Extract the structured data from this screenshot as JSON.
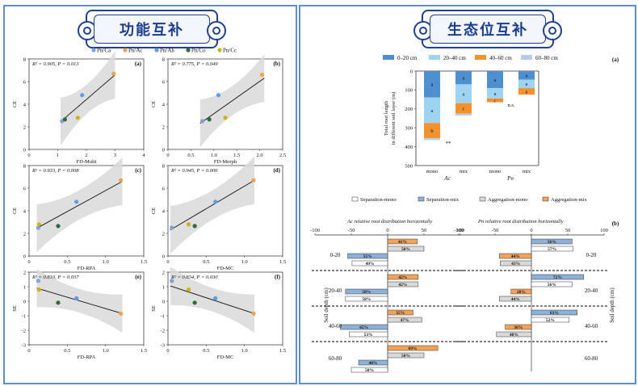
{
  "left_title": "功能互补",
  "right_title": "生态位互补",
  "left_legend": [
    {
      "label": "Pn/Ca",
      "color": "#7fa3d8"
    },
    {
      "label": "Pn/Ac",
      "color": "#f4a24c"
    },
    {
      "label": "Pn/Ah",
      "color": "#5b9cf0"
    },
    {
      "label": "Pn/Co",
      "color": "#2e6b3a"
    },
    {
      "label": "Pn/Cc",
      "color": "#c8b416"
    }
  ],
  "right_top_legend": [
    {
      "label": "0–20 cm",
      "color": "#4e8fcf"
    },
    {
      "label": "20–40 cm",
      "color": "#9ed4f2"
    },
    {
      "label": "40–60 cm",
      "color": "#f2922f"
    },
    {
      "label": "60–80 cm",
      "color": "#b9cbe8"
    }
  ],
  "right_bottom_legend": [
    {
      "label": "Separation-mono",
      "color": "#ffffff"
    },
    {
      "label": "Separation-mix",
      "color": "#8fb0d8"
    },
    {
      "label": "Aggregation-mono",
      "color": "#d9d9d9"
    },
    {
      "label": "Aggregation-mix",
      "color": "#f2a35a"
    }
  ],
  "chart_data": [
    {
      "type": "scatter",
      "panel": "(a)",
      "stat": "R² = 0.905, P = 0.013",
      "xlabel": "FD-Multi",
      "ylabel": "CE",
      "xlim": [
        0,
        4
      ],
      "ylim": [
        0,
        8
      ],
      "xticks": [
        "0",
        "1",
        "2",
        "3",
        "4"
      ],
      "yticks": [
        "0",
        "2",
        "4",
        "6",
        "8"
      ],
      "points": [
        {
          "x": 1.15,
          "y": 2.5
        },
        {
          "x": 2.95,
          "y": 6.7
        },
        {
          "x": 1.85,
          "y": 4.8
        },
        {
          "x": 1.25,
          "y": 2.65
        },
        {
          "x": 1.7,
          "y": 2.8
        }
      ],
      "fit": [
        [
          1.1,
          2.45
        ],
        [
          3.0,
          6.6
        ]
      ]
    },
    {
      "type": "scatter",
      "panel": "(b)",
      "stat": "R² = 0.775, P = 0.049",
      "xlabel": "FD-Morph",
      "ylabel": "CE",
      "xlim": [
        0,
        2.5
      ],
      "ylim": [
        0,
        8
      ],
      "xticks": [
        "0",
        "0.5",
        "1.0",
        "1.5",
        "2.0",
        "2.5"
      ],
      "yticks": [
        "0",
        "2",
        "4",
        "6",
        "8"
      ],
      "points": [
        {
          "x": 0.75,
          "y": 2.5
        },
        {
          "x": 2.05,
          "y": 6.6
        },
        {
          "x": 1.1,
          "y": 4.8
        },
        {
          "x": 0.9,
          "y": 2.65
        },
        {
          "x": 1.25,
          "y": 2.8
        }
      ],
      "fit": [
        [
          0.7,
          2.3
        ],
        [
          2.1,
          6.3
        ]
      ]
    },
    {
      "type": "scatter",
      "panel": "(c)",
      "stat": "R² = 0.933, P = 0.008",
      "xlabel": "FD-RPA",
      "ylabel": "CE",
      "xlim": [
        0,
        1.5
      ],
      "ylim": [
        0,
        8
      ],
      "xticks": [
        "0",
        "0.5",
        "1.0",
        "1.5"
      ],
      "yticks": [
        "0",
        "2",
        "4",
        "6",
        "8"
      ],
      "points": [
        {
          "x": 0.12,
          "y": 2.5
        },
        {
          "x": 1.2,
          "y": 6.7
        },
        {
          "x": 0.62,
          "y": 4.8
        },
        {
          "x": 0.38,
          "y": 2.65
        },
        {
          "x": 0.13,
          "y": 2.8
        }
      ],
      "fit": [
        [
          0.1,
          2.45
        ],
        [
          1.22,
          6.6
        ]
      ]
    },
    {
      "type": "scatter",
      "panel": "(d)",
      "stat": "R² = 0.945, P = 0.006",
      "xlabel": "FD-MC",
      "ylabel": "CE",
      "xlim": [
        0,
        1.5
      ],
      "ylim": [
        0,
        8
      ],
      "xticks": [
        "0",
        "0.5",
        "1.0",
        "1.5"
      ],
      "yticks": [
        "0",
        "2",
        "4",
        "6",
        "8"
      ],
      "points": [
        {
          "x": 0.05,
          "y": 2.5
        },
        {
          "x": 1.12,
          "y": 6.7
        },
        {
          "x": 0.62,
          "y": 4.8
        },
        {
          "x": 0.35,
          "y": 2.65
        },
        {
          "x": 0.27,
          "y": 2.8
        }
      ],
      "fit": [
        [
          0.03,
          2.3
        ],
        [
          1.13,
          6.7
        ]
      ]
    },
    {
      "type": "scatter",
      "panel": "(e)",
      "stat": "R² = 0.810, P = 0.037",
      "xlabel": "FD-RPA",
      "ylabel": "SE",
      "xlim": [
        0,
        1.5
      ],
      "ylim": [
        -3,
        2
      ],
      "xticks": [
        "0",
        "0.5",
        "1.0",
        "1.5"
      ],
      "yticks": [
        "-3",
        "-2",
        "-1",
        "0",
        "1",
        "2"
      ],
      "points": [
        {
          "x": 0.12,
          "y": 1.4
        },
        {
          "x": 1.2,
          "y": -0.85
        },
        {
          "x": 0.62,
          "y": 0.2
        },
        {
          "x": 0.38,
          "y": -0.1
        },
        {
          "x": 0.13,
          "y": 0.8
        }
      ],
      "fit": [
        [
          0.1,
          0.9
        ],
        [
          1.22,
          -0.85
        ]
      ]
    },
    {
      "type": "scatter",
      "panel": "(f)",
      "stat": "R² = 0.834, P = 0.030",
      "xlabel": "FD-MC",
      "ylabel": "SE",
      "xlim": [
        0,
        1.5
      ],
      "ylim": [
        -3,
        2
      ],
      "xticks": [
        "0",
        "0.5",
        "1.0",
        "1.5"
      ],
      "yticks": [
        "-3",
        "-2",
        "-1",
        "0",
        "1",
        "2"
      ],
      "points": [
        {
          "x": 0.05,
          "y": 1.4
        },
        {
          "x": 1.12,
          "y": -0.85
        },
        {
          "x": 0.62,
          "y": 0.2
        },
        {
          "x": 0.35,
          "y": -0.1
        },
        {
          "x": 0.27,
          "y": 0.8
        }
      ],
      "fit": [
        [
          0.03,
          1.05
        ],
        [
          1.13,
          -0.85
        ]
      ]
    },
    {
      "type": "bar",
      "panel": "(a)",
      "ylabel": [
        "Total root length",
        "in different soil layer (m)"
      ],
      "ylim": [
        0,
        500
      ],
      "yticks": [
        "0",
        "100",
        "200",
        "300",
        "400",
        "500"
      ],
      "categories": [
        "mono",
        "mix",
        "mono",
        "mix"
      ],
      "groups": [
        "Ac",
        "Pn"
      ],
      "series": [
        {
          "name": "0–20 cm",
          "values": [
            140,
            70,
            90,
            45
          ]
        },
        {
          "name": "20–40 cm",
          "values": [
            135,
            100,
            55,
            45
          ]
        },
        {
          "name": "40–60 cm",
          "values": [
            80,
            55,
            20,
            35
          ]
        },
        {
          "name": "60–80 cm",
          "values": [
            10,
            10,
            0,
            0
          ]
        }
      ],
      "segment_letters": [
        [
          "a",
          "a",
          "b",
          "c"
        ],
        [
          "a",
          "a",
          "c",
          "a"
        ],
        [
          "a",
          "a",
          "c",
          ""
        ],
        [
          "a",
          "a",
          "a",
          ""
        ]
      ],
      "annotations": [
        "**",
        "n.s."
      ]
    },
    {
      "type": "bar",
      "panel": "(b)",
      "title_left": "Ac relative root distribution horizontally",
      "title_right": "Pn relative root distribution horizontally",
      "xlim": [
        -100,
        100
      ],
      "xticks": [
        "-100",
        "-50",
        "0",
        "50",
        "100"
      ],
      "ylabel": "Soil depth (cm)",
      "depths": [
        "0-20",
        "20-40",
        "40-60",
        "60-80"
      ],
      "ac_rows": [
        {
          "category": "Aggregation-mix",
          "value": 41,
          "label": "41%"
        },
        {
          "category": "Aggregation-mono",
          "value": 50,
          "label": "50%"
        },
        {
          "category": "Separation-mix",
          "value": -55,
          "label": "55%"
        },
        {
          "category": "Separation-mono",
          "value": -49,
          "label": "49%"
        },
        {
          "category": "Aggregation-mix",
          "value": 42,
          "label": "42%"
        },
        {
          "category": "Aggregation-mono",
          "value": 42,
          "label": "42%"
        },
        {
          "category": "Separation-mix",
          "value": -58,
          "label": "58%"
        },
        {
          "category": "Separation-mono",
          "value": -58,
          "label": "58%"
        },
        {
          "category": "Aggregation-mix",
          "value": 35,
          "label": "35%"
        },
        {
          "category": "Aggregation-mono",
          "value": 47,
          "label": "47%"
        },
        {
          "category": "Separation-mix",
          "value": -65,
          "label": "65%"
        },
        {
          "category": "Separation-mono",
          "value": -53,
          "label": "53%"
        },
        {
          "category": "Aggregation-mix",
          "value": 69,
          "label": "69%"
        },
        {
          "category": "Aggregation-mono",
          "value": 50,
          "label": "50%"
        },
        {
          "category": "Separation-mix",
          "value": -40,
          "label": "40%"
        },
        {
          "category": "Separation-mono",
          "value": -50,
          "label": "50%"
        }
      ],
      "pn_rows": [
        {
          "category": "Separation-mix",
          "value": 56,
          "label": "56%"
        },
        {
          "category": "Separation-mono",
          "value": 57,
          "label": "57%"
        },
        {
          "category": "Aggregation-mix",
          "value": -44,
          "label": "44%"
        },
        {
          "category": "Aggregation-mono",
          "value": -43,
          "label": "43%"
        },
        {
          "category": "Separation-mix",
          "value": 72,
          "label": "72%"
        },
        {
          "category": "Separation-mono",
          "value": 56,
          "label": "56%"
        },
        {
          "category": "Aggregation-mix",
          "value": -28,
          "label": "28%"
        },
        {
          "category": "Aggregation-mono",
          "value": -44,
          "label": "44%"
        },
        {
          "category": "Separation-mix",
          "value": 63,
          "label": "63%"
        },
        {
          "category": "Separation-mono",
          "value": 52,
          "label": "52%"
        },
        {
          "category": "Aggregation-mix",
          "value": -36,
          "label": "36%"
        },
        {
          "category": "Aggregation-mono",
          "value": -48,
          "label": "48%"
        }
      ]
    }
  ]
}
